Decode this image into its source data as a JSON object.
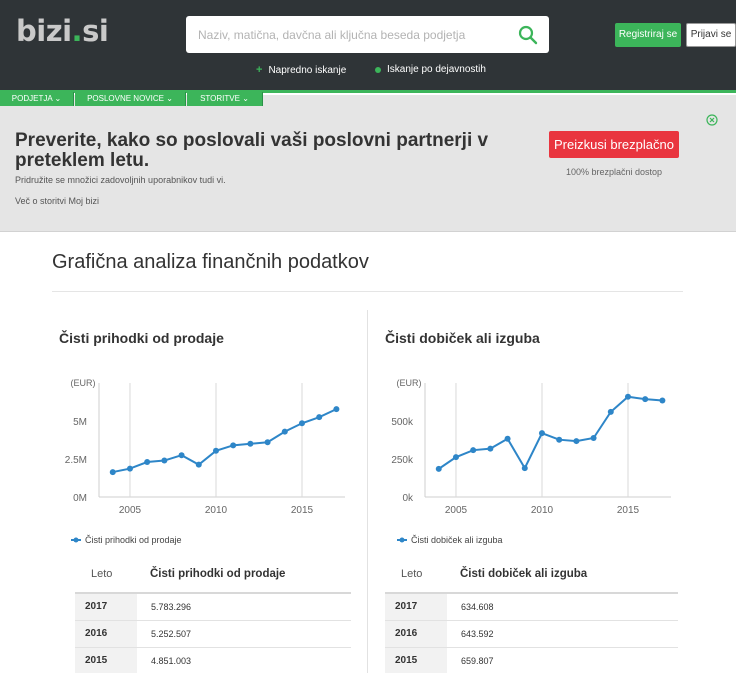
{
  "header": {
    "logo_main": "bizi",
    "logo_dot": ".",
    "logo_tld": "si",
    "search_placeholder": "Naziv, matična, davčna ali ključna beseda podjetja",
    "register_label": "Registriraj se",
    "login_label": "Prijavi se",
    "sub_links": [
      {
        "label": "Napredno iskanje",
        "icon": "plus-icon"
      },
      {
        "label": "Iskanje po dejavnostih",
        "icon": "bullet-icon"
      }
    ],
    "colors": {
      "brand_green": "#3cb55a",
      "header_bg": "#2f3437"
    }
  },
  "nav": {
    "tabs": [
      {
        "label": "Podjetja"
      },
      {
        "label": "Poslovne novice"
      },
      {
        "label": "Storitve"
      }
    ]
  },
  "promo": {
    "title": "Preverite, kako so poslovali vaši poslovni partnerji v preteklem letu.",
    "subtitle": "Pridružite se množici zadovoljnih uporabnikov tudi vi.",
    "more_link": "Več o storitvi Moj bizi",
    "cta_label": "Preizkusi brezplačno",
    "cta_note": "100% brezplačni dostop",
    "cta_color": "#e9353f"
  },
  "section": {
    "title": "Grafična analiza finančnih podatkov"
  },
  "charts": [
    {
      "title": "Čisti prihodki od prodaje",
      "legend": "Čisti prihodki od prodaje",
      "unit_label": "(EUR)",
      "table": {
        "header_year": "Leto",
        "header_metric": "Čisti prihodki od prodaje",
        "rows": [
          {
            "year": "2017",
            "value": "5.783.296"
          },
          {
            "year": "2016",
            "value": "5.252.507"
          },
          {
            "year": "2015",
            "value": "4.851.003"
          }
        ]
      }
    },
    {
      "title": "Čisti dobiček ali izguba",
      "legend": "Čisti dobiček ali izguba",
      "unit_label": "(EUR)",
      "table": {
        "header_year": "Leto",
        "header_metric": "Čisti dobiček ali izguba",
        "rows": [
          {
            "year": "2017",
            "value": "634.608"
          },
          {
            "year": "2016",
            "value": "643.592"
          },
          {
            "year": "2015",
            "value": "659.807"
          }
        ]
      }
    }
  ],
  "chart_data": [
    {
      "type": "line",
      "title": "Čisti prihodki od prodaje",
      "ylabel": "(EUR)",
      "x": [
        2004,
        2005,
        2006,
        2007,
        2008,
        2009,
        2010,
        2011,
        2012,
        2013,
        2014,
        2015,
        2016,
        2017
      ],
      "series": [
        {
          "name": "Čisti prihodki od prodaje",
          "values": [
            1640000,
            1870000,
            2300000,
            2400000,
            2750000,
            2130000,
            3040000,
            3400000,
            3500000,
            3600000,
            4300000,
            4851003,
            5252507,
            5783296
          ]
        }
      ],
      "yticks": [
        0,
        2500000,
        5000000
      ],
      "ytick_labels": [
        "0M",
        "2.5M",
        "5M"
      ],
      "xticks": [
        2005,
        2010,
        2015
      ],
      "xlim": [
        2003.2,
        2017.5
      ],
      "ylim": [
        0,
        7500000
      ],
      "color": "#2e86c8",
      "grid": "vertical"
    },
    {
      "type": "line",
      "title": "Čisti dobiček ali izguba",
      "ylabel": "(EUR)",
      "x": [
        2004,
        2005,
        2006,
        2007,
        2008,
        2009,
        2010,
        2011,
        2012,
        2013,
        2014,
        2015,
        2016,
        2017
      ],
      "series": [
        {
          "name": "Čisti dobiček ali izguba",
          "values": [
            185000,
            262000,
            308000,
            318000,
            383000,
            190000,
            420000,
            377000,
            368000,
            388000,
            560000,
            659807,
            643592,
            634608
          ]
        }
      ],
      "yticks": [
        0,
        250000,
        500000
      ],
      "ytick_labels": [
        "0k",
        "250k",
        "500k"
      ],
      "xticks": [
        2005,
        2010,
        2015
      ],
      "xlim": [
        2003.2,
        2017.5
      ],
      "ylim": [
        0,
        750000
      ],
      "color": "#2e86c8",
      "grid": "vertical"
    }
  ]
}
